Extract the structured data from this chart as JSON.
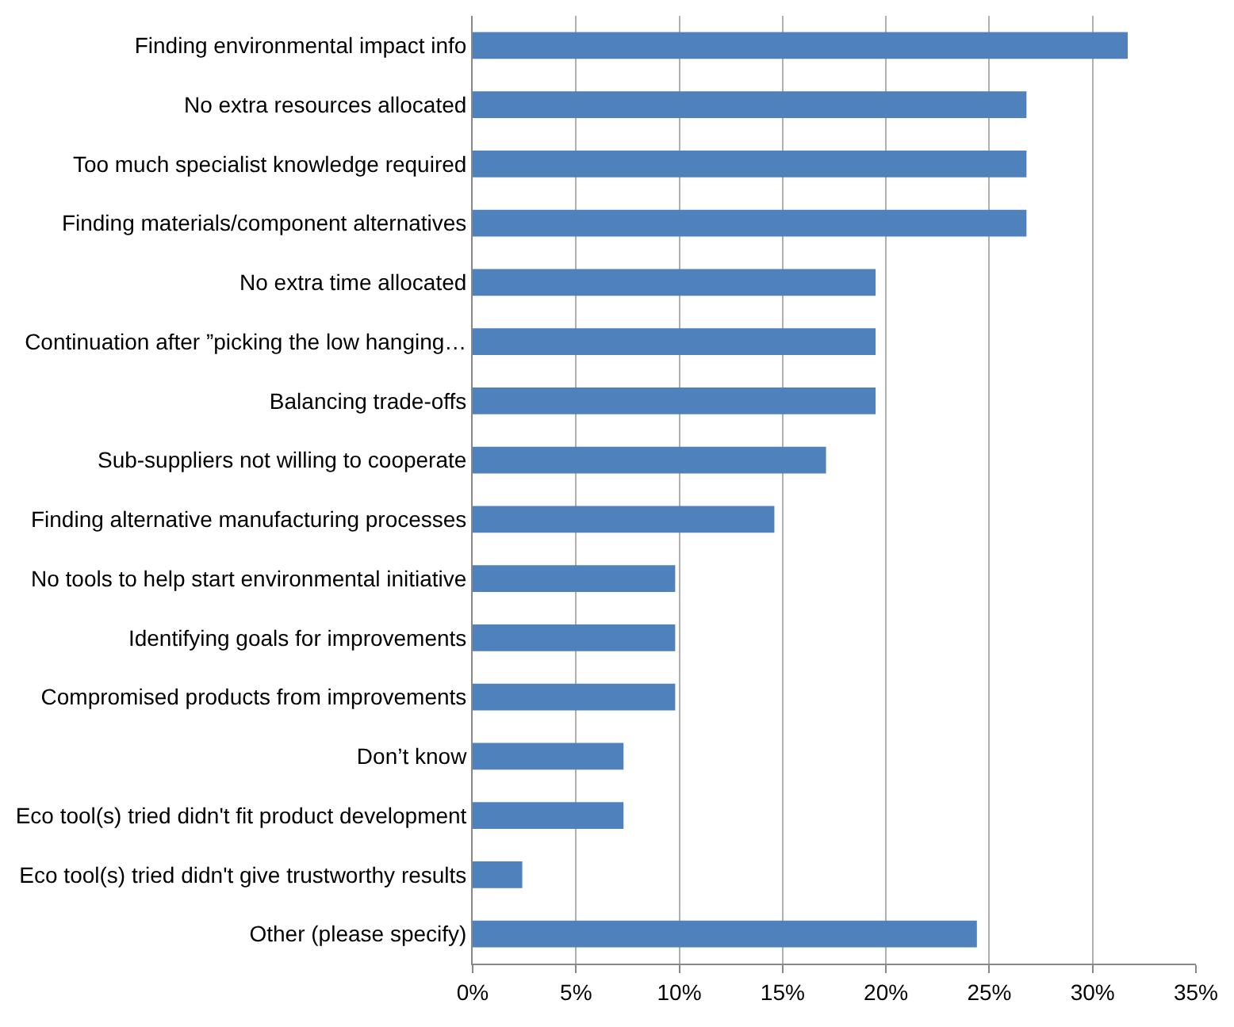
{
  "chart_data": {
    "type": "bar",
    "orientation": "horizontal",
    "categories": [
      "Finding environmental impact info",
      "No extra resources allocated",
      "Too much specialist knowledge required",
      "Finding materials/component alternatives",
      "No extra time allocated",
      "Continuation after ”picking the low hanging…",
      "Balancing trade-offs",
      "Sub-suppliers not willing to cooperate",
      "Finding alternative manufacturing processes",
      "No tools to help start environmental initiative",
      "Identifying goals for improvements",
      "Compromised products from improvements",
      "Don’t know",
      "Eco tool(s) tried didn't fit product development",
      "Eco tool(s) tried didn't give trustworthy results",
      "Other (please specify)"
    ],
    "values": [
      31.7,
      26.8,
      26.8,
      26.8,
      19.5,
      19.5,
      19.5,
      17.1,
      14.6,
      9.8,
      9.8,
      9.8,
      7.3,
      7.3,
      2.4,
      24.4
    ],
    "color": "#4f81bd",
    "xlim": [
      0,
      35
    ],
    "xticks": [
      {
        "value": 0,
        "label": "0%"
      },
      {
        "value": 5,
        "label": "5%"
      },
      {
        "value": 10,
        "label": "10%"
      },
      {
        "value": 15,
        "label": "15%"
      },
      {
        "value": 20,
        "label": "20%"
      },
      {
        "value": 25,
        "label": "25%"
      },
      {
        "value": 30,
        "label": "30%"
      },
      {
        "value": 35,
        "label": "35%"
      }
    ],
    "grid": "x"
  }
}
